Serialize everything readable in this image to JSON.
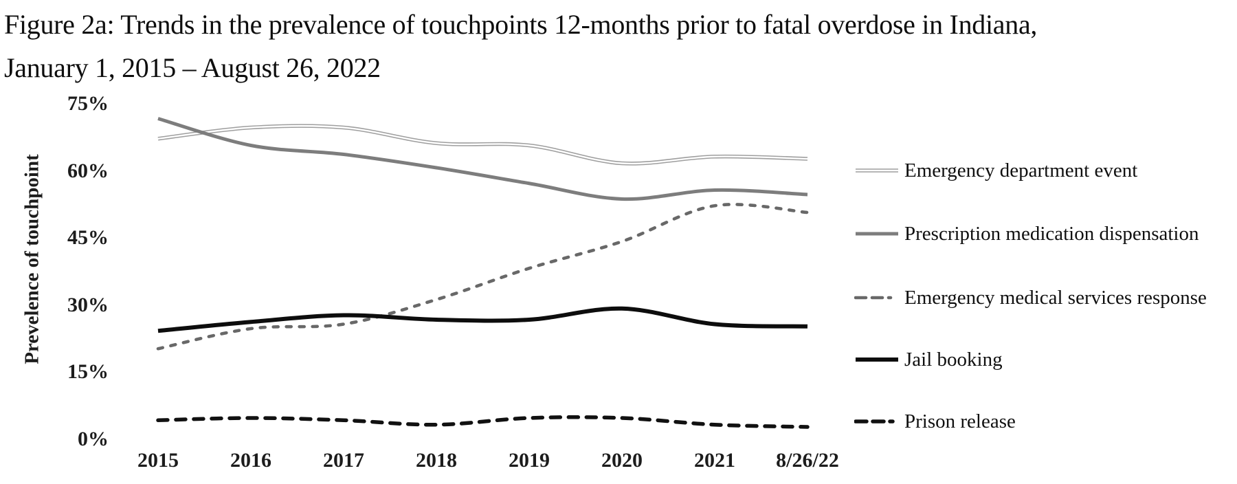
{
  "figure": {
    "title_line1": "Figure 2a: Trends in the prevalence of touchpoints 12-months prior to fatal overdose in Indiana,",
    "title_line2": "January 1, 2015 – August 26, 2022"
  },
  "chart_data": {
    "type": "line",
    "title": "Figure 2a: Trends in the prevalence of touchpoints 12-months prior to fatal overdose in Indiana, January 1, 2015 – August 26, 2022",
    "xlabel": "",
    "ylabel": "Prevelence of touchpoint",
    "x_ticklabels": [
      "2015",
      "2016",
      "2017",
      "2018",
      "2019",
      "2020",
      "2021",
      "8/26/22"
    ],
    "y_ticks": [
      0,
      15,
      30,
      45,
      60,
      75
    ],
    "y_ticklabels": [
      "0%",
      "15%",
      "30%",
      "45%",
      "60%",
      "75%"
    ],
    "ylim": [
      0,
      75
    ],
    "grid": false,
    "axis_lines": false,
    "legend_position": "right",
    "line_shape": "smooth",
    "series": [
      {
        "name": "Emergency department event",
        "style": "double-thin-light",
        "color": "#9e9e9e",
        "values": [
          67.5,
          70,
          70,
          66.5,
          66,
          62,
          63.5,
          63
        ]
      },
      {
        "name": "Prescription medication dispensation",
        "style": "solid-gray",
        "color": "#7d7d7d",
        "values": [
          72,
          66,
          64,
          61,
          57.5,
          54,
          56,
          55
        ]
      },
      {
        "name": "Emergency medical services response",
        "style": "dashed-gray",
        "color": "#686868",
        "values": [
          20.5,
          25,
          26,
          31.5,
          38.5,
          44.5,
          52.5,
          51
        ]
      },
      {
        "name": "Jail booking",
        "style": "solid-black",
        "color": "#0d0d0d",
        "values": [
          24.5,
          26.5,
          28,
          27,
          27,
          29.5,
          26,
          25.5
        ]
      },
      {
        "name": "Prison release",
        "style": "dashed-black",
        "color": "#111111",
        "values": [
          4.5,
          5,
          4.5,
          3.5,
          5,
          5,
          3.5,
          3
        ]
      }
    ]
  }
}
